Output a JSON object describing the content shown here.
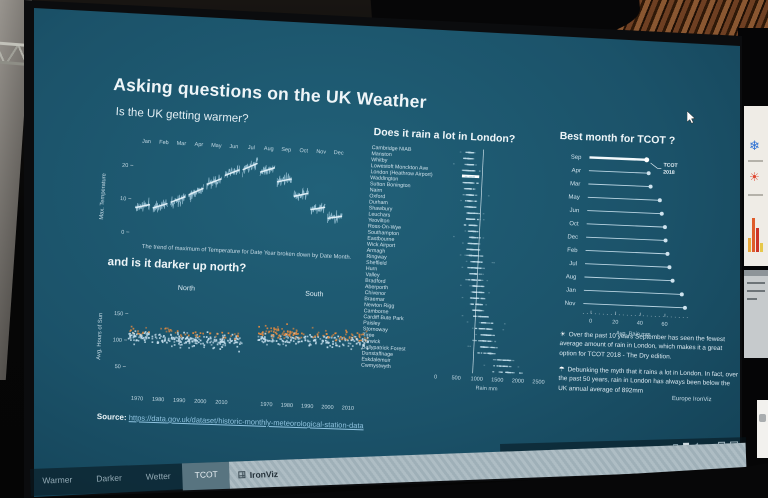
{
  "window": {
    "tabs": [
      {
        "label": "Warmer",
        "active": false
      },
      {
        "label": "Darker",
        "active": false
      },
      {
        "label": "Wetter",
        "active": false
      },
      {
        "label": "TCOT",
        "active": false
      },
      {
        "label": "IronViz",
        "active": true
      }
    ],
    "statusbar_icons": [
      "slides-icon",
      "current-slide-icon",
      "volume-icon",
      "fullscreen-icon",
      "display-icon"
    ]
  },
  "dashboard": {
    "title": "Asking questions on the UK Weather",
    "credit": "Europe IronViz",
    "source": {
      "label": "Source:",
      "url": "https://data.gov.uk/dataset/historic-monthly-meteorological-station-data"
    },
    "annotations": [
      {
        "icon": "sun-icon",
        "glyph": "☀",
        "text": "Over the past 10 years September has seen the fewest average amount of rain in London, which makes it a great option for TCOT 2018 - The Dry edition."
      },
      {
        "icon": "umbrella-icon",
        "glyph": "☂",
        "text": "Debunking the myth that it rains a lot in London. In fact, over the past 50 years, rain in London has always been below the UK annual average of 892mm"
      }
    ]
  },
  "side_screen": {
    "glyphs": [
      "❄",
      "☀"
    ],
    "icons": [
      "snowflake-icon",
      "sun-icon"
    ],
    "mini_bar_values": [
      14,
      34,
      24,
      9
    ]
  },
  "colors": {
    "dashboard_bg": "#1b5269",
    "chart_blue": "#a9cfe2",
    "chart_orange": "#e48a40",
    "highlight_white": "#ffffff",
    "link_blue": "#8fc3e0"
  },
  "chart_data": [
    {
      "id": "max-temperature-by-month",
      "type": "line",
      "title": "Is the UK getting warmer?",
      "caption": "The trend of maximum of Temperature for Date Year broken down by Date Month.",
      "ylabel": "Max. Temperature",
      "yticks": [
        0,
        10,
        20
      ],
      "ylim": [
        -3,
        27
      ],
      "year_range": [
        1965,
        2018
      ],
      "categories": [
        "Jan",
        "Feb",
        "Mar",
        "Apr",
        "May",
        "Jun",
        "Jul",
        "Aug",
        "Sep",
        "Oct",
        "Nov",
        "Dec"
      ],
      "trend_start": [
        7.4,
        7.6,
        9.6,
        12.2,
        15.6,
        18.6,
        20.6,
        20.2,
        17.6,
        13.6,
        9.9,
        7.6
      ],
      "trend_end": [
        8.6,
        9.2,
        11.6,
        14.4,
        17.6,
        20.6,
        22.8,
        21.8,
        18.8,
        14.8,
        10.9,
        8.5
      ]
    },
    {
      "id": "avg-hours-of-sun-north-vs-south",
      "type": "scatter",
      "title": "and is it darker up north?",
      "ylabel": "Avg. Hours of Sun",
      "yticks": [
        50,
        100,
        150
      ],
      "ylim": [
        30,
        170
      ],
      "xticks": [
        1970,
        1980,
        1990,
        2000,
        2010
      ],
      "x_range": [
        1964,
        2018
      ],
      "panels": [
        {
          "label": "North",
          "mean": 110,
          "spread": 13,
          "points": 290,
          "warm_bias": 8
        },
        {
          "label": "South",
          "mean": 121,
          "spread": 13,
          "points": 290,
          "warm_bias": 2
        }
      ],
      "point_colors": {
        "cool": "#c2dcea",
        "warm": "#e48a40"
      }
    },
    {
      "id": "rain-by-station",
      "type": "strip",
      "title": "Does it rain a lot in London?",
      "xlabel": "Rain mm",
      "xticks": [
        0,
        500,
        1000,
        1500,
        2000,
        2500
      ],
      "xlim": [
        0,
        2600
      ],
      "reference_avg_mm": 892,
      "highlight": "London (Heathrow Airport)",
      "stations": [
        {
          "name": "Cambridge NIAB",
          "avg": 560
        },
        {
          "name": "Manston",
          "avg": 575
        },
        {
          "name": "Whitby",
          "avg": 615
        },
        {
          "name": "Lowestoft Monckton Ave",
          "avg": 600
        },
        {
          "name": "London (Heathrow Airport)",
          "avg": 610
        },
        {
          "name": "Waddington",
          "avg": 600
        },
        {
          "name": "Sutton Bonington",
          "avg": 620
        },
        {
          "name": "Nairn",
          "avg": 640
        },
        {
          "name": "Oxford",
          "avg": 650
        },
        {
          "name": "Durham",
          "avg": 655
        },
        {
          "name": "Shawbury",
          "avg": 675
        },
        {
          "name": "Leuchars",
          "avg": 680
        },
        {
          "name": "Yeovilton",
          "avg": 700
        },
        {
          "name": "Ross-On-Wye",
          "avg": 720
        },
        {
          "name": "Southampton",
          "avg": 755
        },
        {
          "name": "Eastbourne",
          "avg": 795
        },
        {
          "name": "Wick Airport",
          "avg": 790
        },
        {
          "name": "Armagh",
          "avg": 815
        },
        {
          "name": "Ringway",
          "avg": 825
        },
        {
          "name": "Sheffield",
          "avg": 830
        },
        {
          "name": "Hurn",
          "avg": 820
        },
        {
          "name": "Valley",
          "avg": 855
        },
        {
          "name": "Bradford",
          "avg": 875
        },
        {
          "name": "Aberporth",
          "avg": 895
        },
        {
          "name": "Chivenor",
          "avg": 915
        },
        {
          "name": "Braemar",
          "avg": 925
        },
        {
          "name": "Newton Rigg",
          "avg": 940
        },
        {
          "name": "Camborne",
          "avg": 1060
        },
        {
          "name": "Cardiff Bute Park",
          "avg": 1130
        },
        {
          "name": "Paisley",
          "avg": 1155
        },
        {
          "name": "Stornoway",
          "avg": 1180
        },
        {
          "name": "Tiree",
          "avg": 1190
        },
        {
          "name": "Lerwick",
          "avg": 1210
        },
        {
          "name": "Ballypatrick Forest",
          "avg": 1280
        },
        {
          "name": "Dunstaffnage",
          "avg": 1640
        },
        {
          "name": "Eskdalemuir",
          "avg": 1600
        },
        {
          "name": "Cwmystwyth",
          "avg": 1750
        }
      ]
    },
    {
      "id": "best-month-for-tcot",
      "type": "lollipop",
      "title": "Best month for TCOT ?",
      "xlabel": "Avg. Rain mm",
      "xticks": [
        0,
        20,
        40,
        60
      ],
      "xlim": [
        0,
        80
      ],
      "annotation": "TCOT 2018",
      "highlight": "Sep",
      "categories": [
        "Sep",
        "Apr",
        "Mar",
        "May",
        "Jun",
        "Oct",
        "Dec",
        "Feb",
        "Jul",
        "Aug",
        "Jan",
        "Nov"
      ],
      "values": [
        40,
        42,
        44,
        52,
        54,
        57,
        58,
        60,
        62,
        65,
        73,
        76
      ]
    }
  ]
}
